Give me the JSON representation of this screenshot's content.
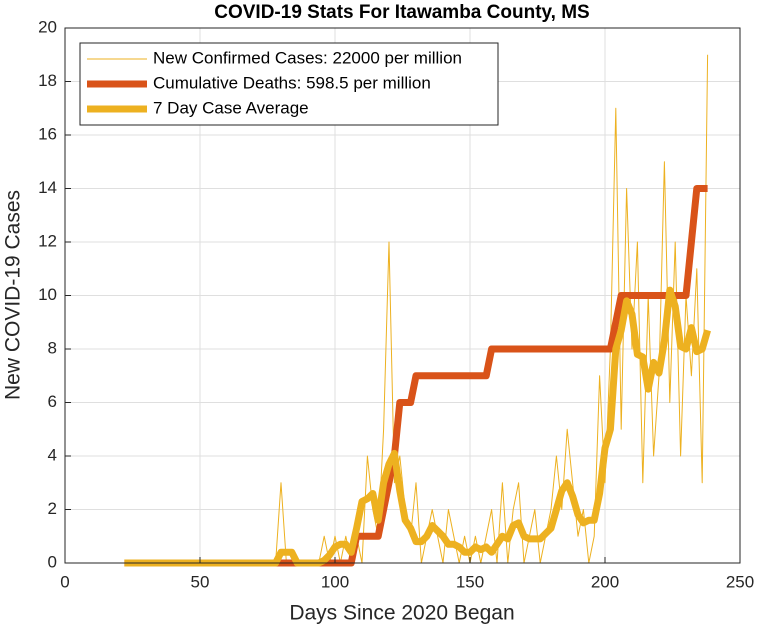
{
  "chart_data": {
    "type": "line",
    "title": "COVID-19 Stats For Itawamba County, MS",
    "xlabel": "Days Since 2020 Began",
    "ylabel": "New COVID-19 Cases",
    "xlim": [
      0,
      250
    ],
    "xticks": [
      0,
      50,
      100,
      150,
      200,
      250
    ],
    "ylim": [
      0,
      20
    ],
    "yticks": [
      0,
      2,
      4,
      6,
      8,
      10,
      12,
      14,
      16,
      18,
      20
    ],
    "grid": true,
    "legend": "top-left",
    "x": [
      22,
      24,
      26,
      28,
      30,
      32,
      34,
      36,
      38,
      40,
      42,
      44,
      46,
      48,
      50,
      52,
      54,
      56,
      58,
      60,
      62,
      64,
      66,
      68,
      70,
      72,
      74,
      76,
      78,
      80,
      82,
      84,
      86,
      88,
      90,
      92,
      94,
      96,
      98,
      100,
      102,
      104,
      106,
      108,
      110,
      112,
      114,
      116,
      118,
      120,
      122,
      124,
      126,
      128,
      130,
      132,
      134,
      136,
      138,
      140,
      142,
      144,
      146,
      148,
      150,
      152,
      154,
      156,
      158,
      160,
      162,
      164,
      166,
      168,
      170,
      172,
      174,
      176,
      178,
      180,
      182,
      184,
      186,
      188,
      190,
      192,
      194,
      196,
      198,
      200,
      202,
      204,
      206,
      208,
      210,
      212,
      214,
      216,
      218,
      220,
      222,
      224,
      226,
      228,
      230,
      232,
      234,
      236,
      238
    ],
    "series": [
      {
        "name": "New Confirmed Cases: 22000 per million",
        "color": "#edb120",
        "line_width": 1,
        "values": [
          0,
          0,
          0,
          0,
          0,
          0,
          0,
          0,
          0,
          0,
          0,
          0,
          0,
          0,
          0,
          0,
          0,
          0,
          0,
          0,
          0,
          0,
          0,
          0,
          0,
          0,
          0,
          0,
          0,
          3,
          0,
          0,
          0,
          0,
          0,
          0,
          0,
          1,
          0,
          1,
          0,
          1,
          0,
          1,
          0,
          4,
          2,
          1,
          5,
          12,
          3,
          4,
          2,
          1,
          3,
          0,
          1,
          2,
          1,
          0,
          2,
          1,
          0,
          1,
          0,
          1,
          0,
          1,
          2,
          0,
          3,
          0,
          2,
          3,
          0,
          1,
          2,
          0,
          1,
          2,
          4,
          2,
          5,
          3,
          1,
          2,
          0,
          1,
          7,
          3,
          8,
          17,
          5,
          14,
          8,
          12,
          3,
          10,
          4,
          7,
          15,
          6,
          12,
          4,
          10,
          7,
          11,
          3,
          19
        ]
      },
      {
        "name": "Cumulative Deaths: 598.5 per million",
        "color": "#d95319",
        "line_width": 7,
        "values": [
          0,
          0,
          0,
          0,
          0,
          0,
          0,
          0,
          0,
          0,
          0,
          0,
          0,
          0,
          0,
          0,
          0,
          0,
          0,
          0,
          0,
          0,
          0,
          0,
          0,
          0,
          0,
          0,
          0,
          0,
          0,
          0,
          0,
          0,
          0,
          0,
          0,
          0,
          0,
          0,
          0,
          0,
          0,
          1,
          1,
          1,
          1,
          1,
          2,
          3,
          4,
          6,
          6,
          6,
          7,
          7,
          7,
          7,
          7,
          7,
          7,
          7,
          7,
          7,
          7,
          7,
          7,
          7,
          8,
          8,
          8,
          8,
          8,
          8,
          8,
          8,
          8,
          8,
          8,
          8,
          8,
          8,
          8,
          8,
          8,
          8,
          8,
          8,
          8,
          8,
          8,
          9,
          10,
          10,
          10,
          10,
          10,
          10,
          10,
          10,
          10,
          10,
          10,
          10,
          10,
          12,
          14,
          14,
          14
        ]
      },
      {
        "name": "7 Day Case Average",
        "color": "#edb120",
        "line_width": 7,
        "values": [
          0,
          0,
          0,
          0,
          0,
          0,
          0,
          0,
          0,
          0,
          0,
          0,
          0,
          0,
          0,
          0,
          0,
          0,
          0,
          0,
          0,
          0,
          0,
          0,
          0,
          0,
          0,
          0,
          0,
          0.4,
          0.4,
          0.4,
          0,
          0,
          0,
          0,
          0,
          0.1,
          0.3,
          0.6,
          0.7,
          0.7,
          0.4,
          1.3,
          2.3,
          2.4,
          2.6,
          1.6,
          3,
          3.7,
          4.1,
          2.7,
          1.6,
          1.3,
          0.8,
          0.8,
          1,
          1.4,
          1.2,
          1,
          0.7,
          0.7,
          0.6,
          0.4,
          0.4,
          0.6,
          0.5,
          0.6,
          0.4,
          0.7,
          1,
          0.9,
          1.4,
          1.5,
          1,
          0.9,
          0.9,
          0.9,
          1.1,
          1.3,
          2,
          2.7,
          3,
          2.5,
          1.8,
          1.5,
          1.6,
          1.6,
          2.6,
          4.3,
          5,
          8,
          8.7,
          9.8,
          9.3,
          7.8,
          7.7,
          6.5,
          7.5,
          7.1,
          8.3,
          10.2,
          9.6,
          8.1,
          8,
          8.8,
          7.9,
          8,
          8.7
        ]
      }
    ]
  }
}
